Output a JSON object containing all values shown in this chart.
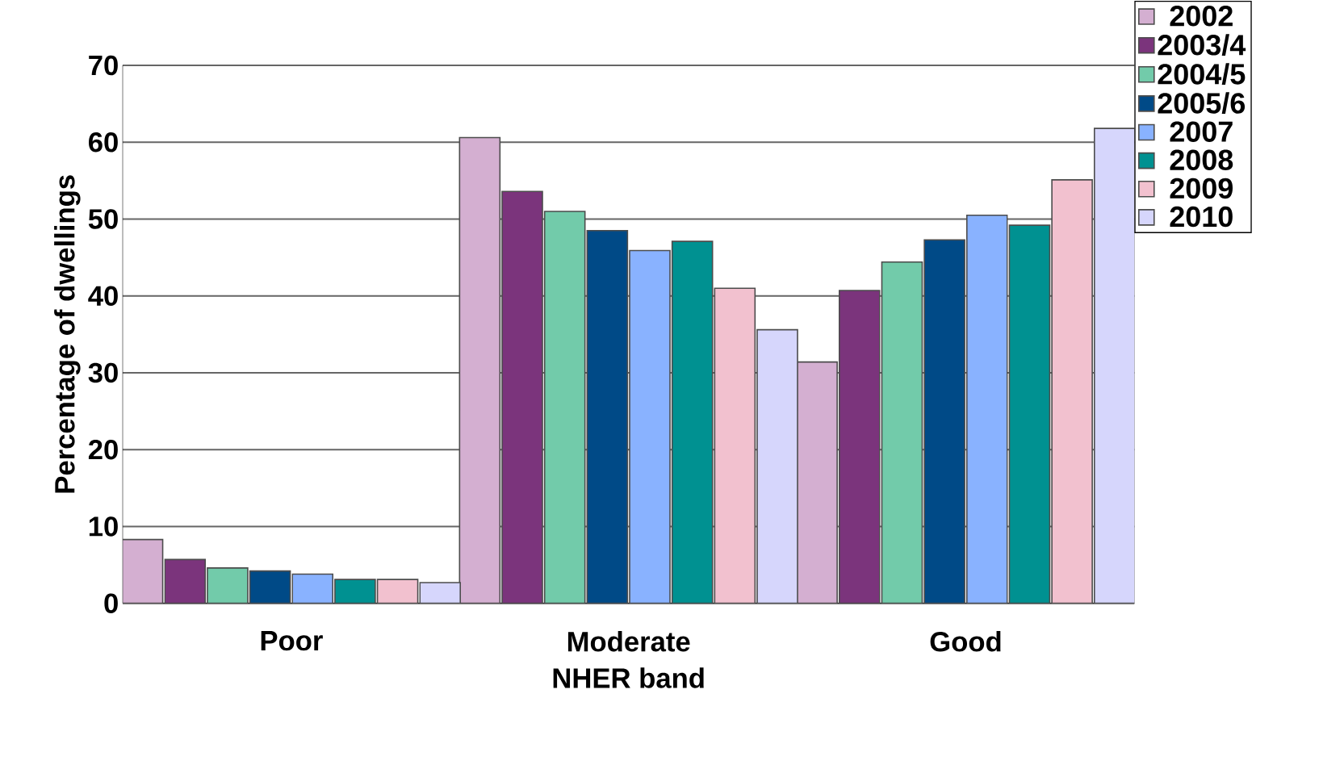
{
  "chart_data": {
    "type": "bar",
    "xlabel": "NHER band",
    "ylabel": "Percentage of dwellings",
    "categories": [
      "Poor",
      "Moderate",
      "Good"
    ],
    "series": [
      {
        "name": "2002",
        "color": "#d4afd1",
        "values": [
          8.3,
          60.6,
          31.4
        ]
      },
      {
        "name": "2003/4",
        "color": "#7b347c",
        "values": [
          5.7,
          53.6,
          40.7
        ]
      },
      {
        "name": "2004/5",
        "color": "#72cbaa",
        "values": [
          4.6,
          51.0,
          44.4
        ]
      },
      {
        "name": "2005/6",
        "color": "#004a87",
        "values": [
          4.2,
          48.5,
          47.3
        ]
      },
      {
        "name": "2007",
        "color": "#89b2ff",
        "values": [
          3.8,
          45.9,
          50.5
        ]
      },
      {
        "name": "2008",
        "color": "#009191",
        "values": [
          3.1,
          47.1,
          49.2
        ]
      },
      {
        "name": "2009",
        "color": "#f2c1cf",
        "values": [
          3.1,
          41.0,
          55.1
        ]
      },
      {
        "name": "2010",
        "color": "#d6d6fc",
        "values": [
          2.7,
          35.6,
          61.8
        ]
      }
    ],
    "ylim": [
      0,
      70
    ],
    "yticks": [
      0,
      10,
      20,
      30,
      40,
      50,
      60,
      70
    ],
    "grid": "y",
    "legend": "top right"
  }
}
